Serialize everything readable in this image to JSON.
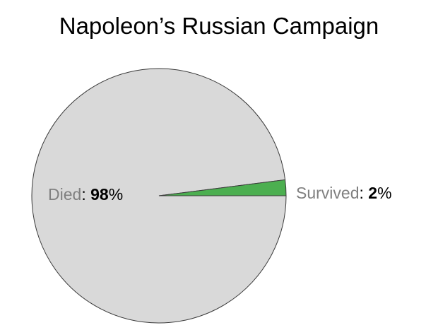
{
  "chart_data": {
    "type": "pie",
    "title": "Napoleon’s Russian Campaign",
    "slices": [
      {
        "label": "Died",
        "value": 98,
        "value_text": "98",
        "unit": "%",
        "color": "#d9d9d9",
        "label_color": "#808080"
      },
      {
        "label": "Survived",
        "value": 2,
        "value_text": "2",
        "unit": "%",
        "color": "#4caf50",
        "label_color": "#808080"
      }
    ],
    "separator": ": ",
    "value_color": "#000000",
    "outline_color": "#3a3a3a",
    "legend": "none"
  }
}
